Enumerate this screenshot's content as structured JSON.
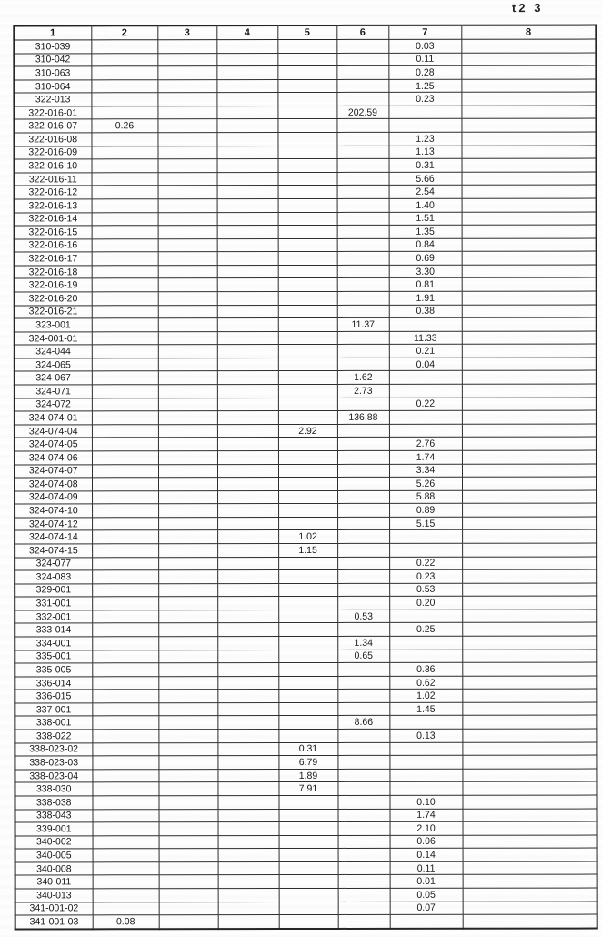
{
  "page": {
    "label_top_right": "t2 3"
  },
  "table": {
    "columns": [
      "1",
      "2",
      "3",
      "4",
      "5",
      "6",
      "7",
      "8"
    ],
    "rows": [
      [
        "310-039",
        "",
        "",
        "",
        "",
        "",
        "0.03",
        ""
      ],
      [
        "310-042",
        "",
        "",
        "",
        "",
        "",
        "0.11",
        ""
      ],
      [
        "310-063",
        "",
        "",
        "",
        "",
        "",
        "0.28",
        ""
      ],
      [
        "310-064",
        "",
        "",
        "",
        "",
        "",
        "1.25",
        ""
      ],
      [
        "322-013",
        "",
        "",
        "",
        "",
        "",
        "0.23",
        ""
      ],
      [
        "322-016-01",
        "",
        "",
        "",
        "",
        "202.59",
        "",
        ""
      ],
      [
        "322-016-07",
        "0.26",
        "",
        "",
        "",
        "",
        "",
        ""
      ],
      [
        "322-016-08",
        "",
        "",
        "",
        "",
        "",
        "1.23",
        ""
      ],
      [
        "322-016-09",
        "",
        "",
        "",
        "",
        "",
        "1.13",
        ""
      ],
      [
        "322-016-10",
        "",
        "",
        "",
        "",
        "",
        "0.31",
        ""
      ],
      [
        "322-016-11",
        "",
        "",
        "",
        "",
        "",
        "5.66",
        ""
      ],
      [
        "322-016-12",
        "",
        "",
        "",
        "",
        "",
        "2.54",
        ""
      ],
      [
        "322-016-13",
        "",
        "",
        "",
        "",
        "",
        "1.40",
        ""
      ],
      [
        "322-016-14",
        "",
        "",
        "",
        "",
        "",
        "1.51",
        ""
      ],
      [
        "322-016-15",
        "",
        "",
        "",
        "",
        "",
        "1.35",
        ""
      ],
      [
        "322-016-16",
        "",
        "",
        "",
        "",
        "",
        "0.84",
        ""
      ],
      [
        "322-016-17",
        "",
        "",
        "",
        "",
        "",
        "0.69",
        ""
      ],
      [
        "322-016-18",
        "",
        "",
        "",
        "",
        "",
        "3.30",
        ""
      ],
      [
        "322-016-19",
        "",
        "",
        "",
        "",
        "",
        "0.81",
        ""
      ],
      [
        "322-016-20",
        "",
        "",
        "",
        "",
        "",
        "1.91",
        ""
      ],
      [
        "322-016-21",
        "",
        "",
        "",
        "",
        "",
        "0.38",
        ""
      ],
      [
        "323-001",
        "",
        "",
        "",
        "",
        "11.37",
        "",
        ""
      ],
      [
        "324-001-01",
        "",
        "",
        "",
        "",
        "",
        "11.33",
        ""
      ],
      [
        "324-044",
        "",
        "",
        "",
        "",
        "",
        "0.21",
        ""
      ],
      [
        "324-065",
        "",
        "",
        "",
        "",
        "",
        "0.04",
        ""
      ],
      [
        "324-067",
        "",
        "",
        "",
        "",
        "1.62",
        "",
        ""
      ],
      [
        "324-071",
        "",
        "",
        "",
        "",
        "2.73",
        "",
        ""
      ],
      [
        "324-072",
        "",
        "",
        "",
        "",
        "",
        "0.22",
        ""
      ],
      [
        "324-074-01",
        "",
        "",
        "",
        "",
        "136.88",
        "",
        ""
      ],
      [
        "324-074-04",
        "",
        "",
        "",
        "2.92",
        "",
        "",
        ""
      ],
      [
        "324-074-05",
        "",
        "",
        "",
        "",
        "",
        "2.76",
        ""
      ],
      [
        "324-074-06",
        "",
        "",
        "",
        "",
        "",
        "1.74",
        ""
      ],
      [
        "324-074-07",
        "",
        "",
        "",
        "",
        "",
        "3.34",
        ""
      ],
      [
        "324-074-08",
        "",
        "",
        "",
        "",
        "",
        "5.26",
        ""
      ],
      [
        "324-074-09",
        "",
        "",
        "",
        "",
        "",
        "5.88",
        ""
      ],
      [
        "324-074-10",
        "",
        "",
        "",
        "",
        "",
        "0.89",
        ""
      ],
      [
        "324-074-12",
        "",
        "",
        "",
        "",
        "",
        "5.15",
        ""
      ],
      [
        "324-074-14",
        "",
        "",
        "",
        "1.02",
        "",
        "",
        ""
      ],
      [
        "324-074-15",
        "",
        "",
        "",
        "1.15",
        "",
        "",
        ""
      ],
      [
        "324-077",
        "",
        "",
        "",
        "",
        "",
        "0.22",
        ""
      ],
      [
        "324-083",
        "",
        "",
        "",
        "",
        "",
        "0.23",
        ""
      ],
      [
        "329-001",
        "",
        "",
        "",
        "",
        "",
        "0.53",
        ""
      ],
      [
        "331-001",
        "",
        "",
        "",
        "",
        "",
        "0.20",
        ""
      ],
      [
        "332-001",
        "",
        "",
        "",
        "",
        "0.53",
        "",
        ""
      ],
      [
        "333-014",
        "",
        "",
        "",
        "",
        "",
        "0.25",
        ""
      ],
      [
        "334-001",
        "",
        "",
        "",
        "",
        "1.34",
        "",
        ""
      ],
      [
        "335-001",
        "",
        "",
        "",
        "",
        "0.65",
        "",
        ""
      ],
      [
        "335-005",
        "",
        "",
        "",
        "",
        "",
        "0.36",
        ""
      ],
      [
        "336-014",
        "",
        "",
        "",
        "",
        "",
        "0.62",
        ""
      ],
      [
        "336-015",
        "",
        "",
        "",
        "",
        "",
        "1.02",
        ""
      ],
      [
        "337-001",
        "",
        "",
        "",
        "",
        "",
        "1.45",
        ""
      ],
      [
        "338-001",
        "",
        "",
        "",
        "",
        "8.66",
        "",
        ""
      ],
      [
        "338-022",
        "",
        "",
        "",
        "",
        "",
        "0.13",
        ""
      ],
      [
        "338-023-02",
        "",
        "",
        "",
        "0.31",
        "",
        "",
        ""
      ],
      [
        "338-023-03",
        "",
        "",
        "",
        "6.79",
        "",
        "",
        ""
      ],
      [
        "338-023-04",
        "",
        "",
        "",
        "1.89",
        "",
        "",
        ""
      ],
      [
        "338-030",
        "",
        "",
        "",
        "7.91",
        "",
        "",
        ""
      ],
      [
        "338-038",
        "",
        "",
        "",
        "",
        "",
        "0.10",
        ""
      ],
      [
        "338-043",
        "",
        "",
        "",
        "",
        "",
        "1.74",
        ""
      ],
      [
        "339-001",
        "",
        "",
        "",
        "",
        "",
        "2.10",
        ""
      ],
      [
        "340-002",
        "",
        "",
        "",
        "",
        "",
        "0.06",
        ""
      ],
      [
        "340-005",
        "",
        "",
        "",
        "",
        "",
        "0.14",
        ""
      ],
      [
        "340-008",
        "",
        "",
        "",
        "",
        "",
        "0.11",
        ""
      ],
      [
        "340-011",
        "",
        "",
        "",
        "",
        "",
        "0.01",
        ""
      ],
      [
        "340-013",
        "",
        "",
        "",
        "",
        "",
        "0.05",
        ""
      ],
      [
        "341-001-02",
        "",
        "",
        "",
        "",
        "",
        "0.07",
        ""
      ],
      [
        "341-001-03",
        "0.08",
        "",
        "",
        "",
        "",
        "",
        ""
      ]
    ]
  }
}
